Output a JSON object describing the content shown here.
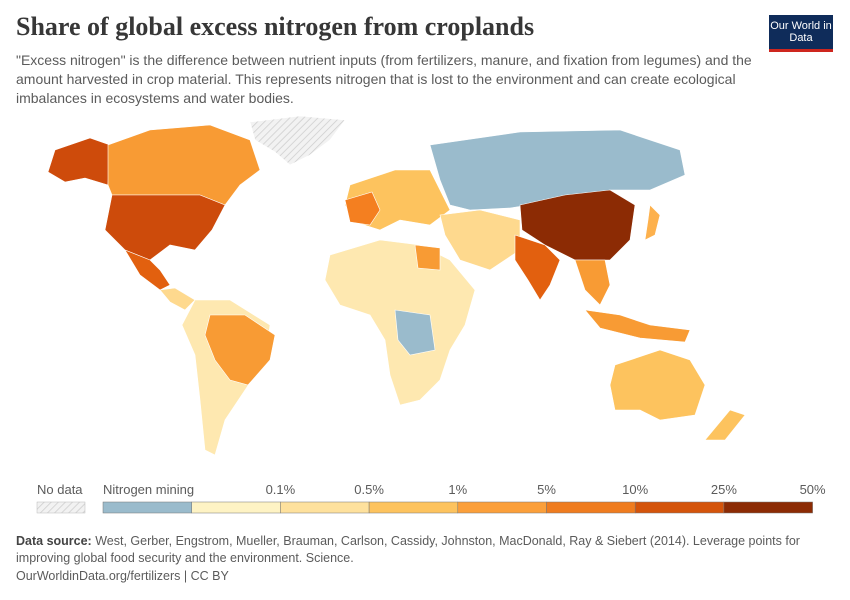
{
  "header": {
    "title": "Share of global excess nitrogen from croplands",
    "subtitle": "\"Excess nitrogen\" is the difference between nutrient inputs (from fertilizers, manure, and fixation from legumes) and the amount harvested in crop material. This represents nitrogen that is lost to the environment and can create ecological imbalances in ecosystems and water bodies.",
    "logo": "Our World in Data"
  },
  "legend": {
    "no_data": "No data",
    "bins": [
      {
        "label": "Nitrogen mining",
        "color": "#9abbcc"
      },
      {
        "label": null,
        "color": "#fef3c4"
      },
      {
        "label": "0.1%",
        "color": "#fee19d"
      },
      {
        "label": "0.5%",
        "color": "#fdc35e"
      },
      {
        "label": "1%",
        "color": "#fb9f3a"
      },
      {
        "label": "5%",
        "color": "#ef7c1f"
      },
      {
        "label": "10%",
        "color": "#d4540b"
      },
      {
        "label": "25%",
        "color": "#8c2b04"
      }
    ],
    "end_label": "50%"
  },
  "footer": {
    "source_label": "Data source:",
    "source": "West, Gerber, Engstrom, Mueller, Brauman, Carlson, Cassidy, Johnston, MacDonald, Ray & Siebert (2014). Leverage points for improving global food security and the environment. Science.",
    "url": "OurWorldinData.org/fertilizers | CC BY"
  }
}
